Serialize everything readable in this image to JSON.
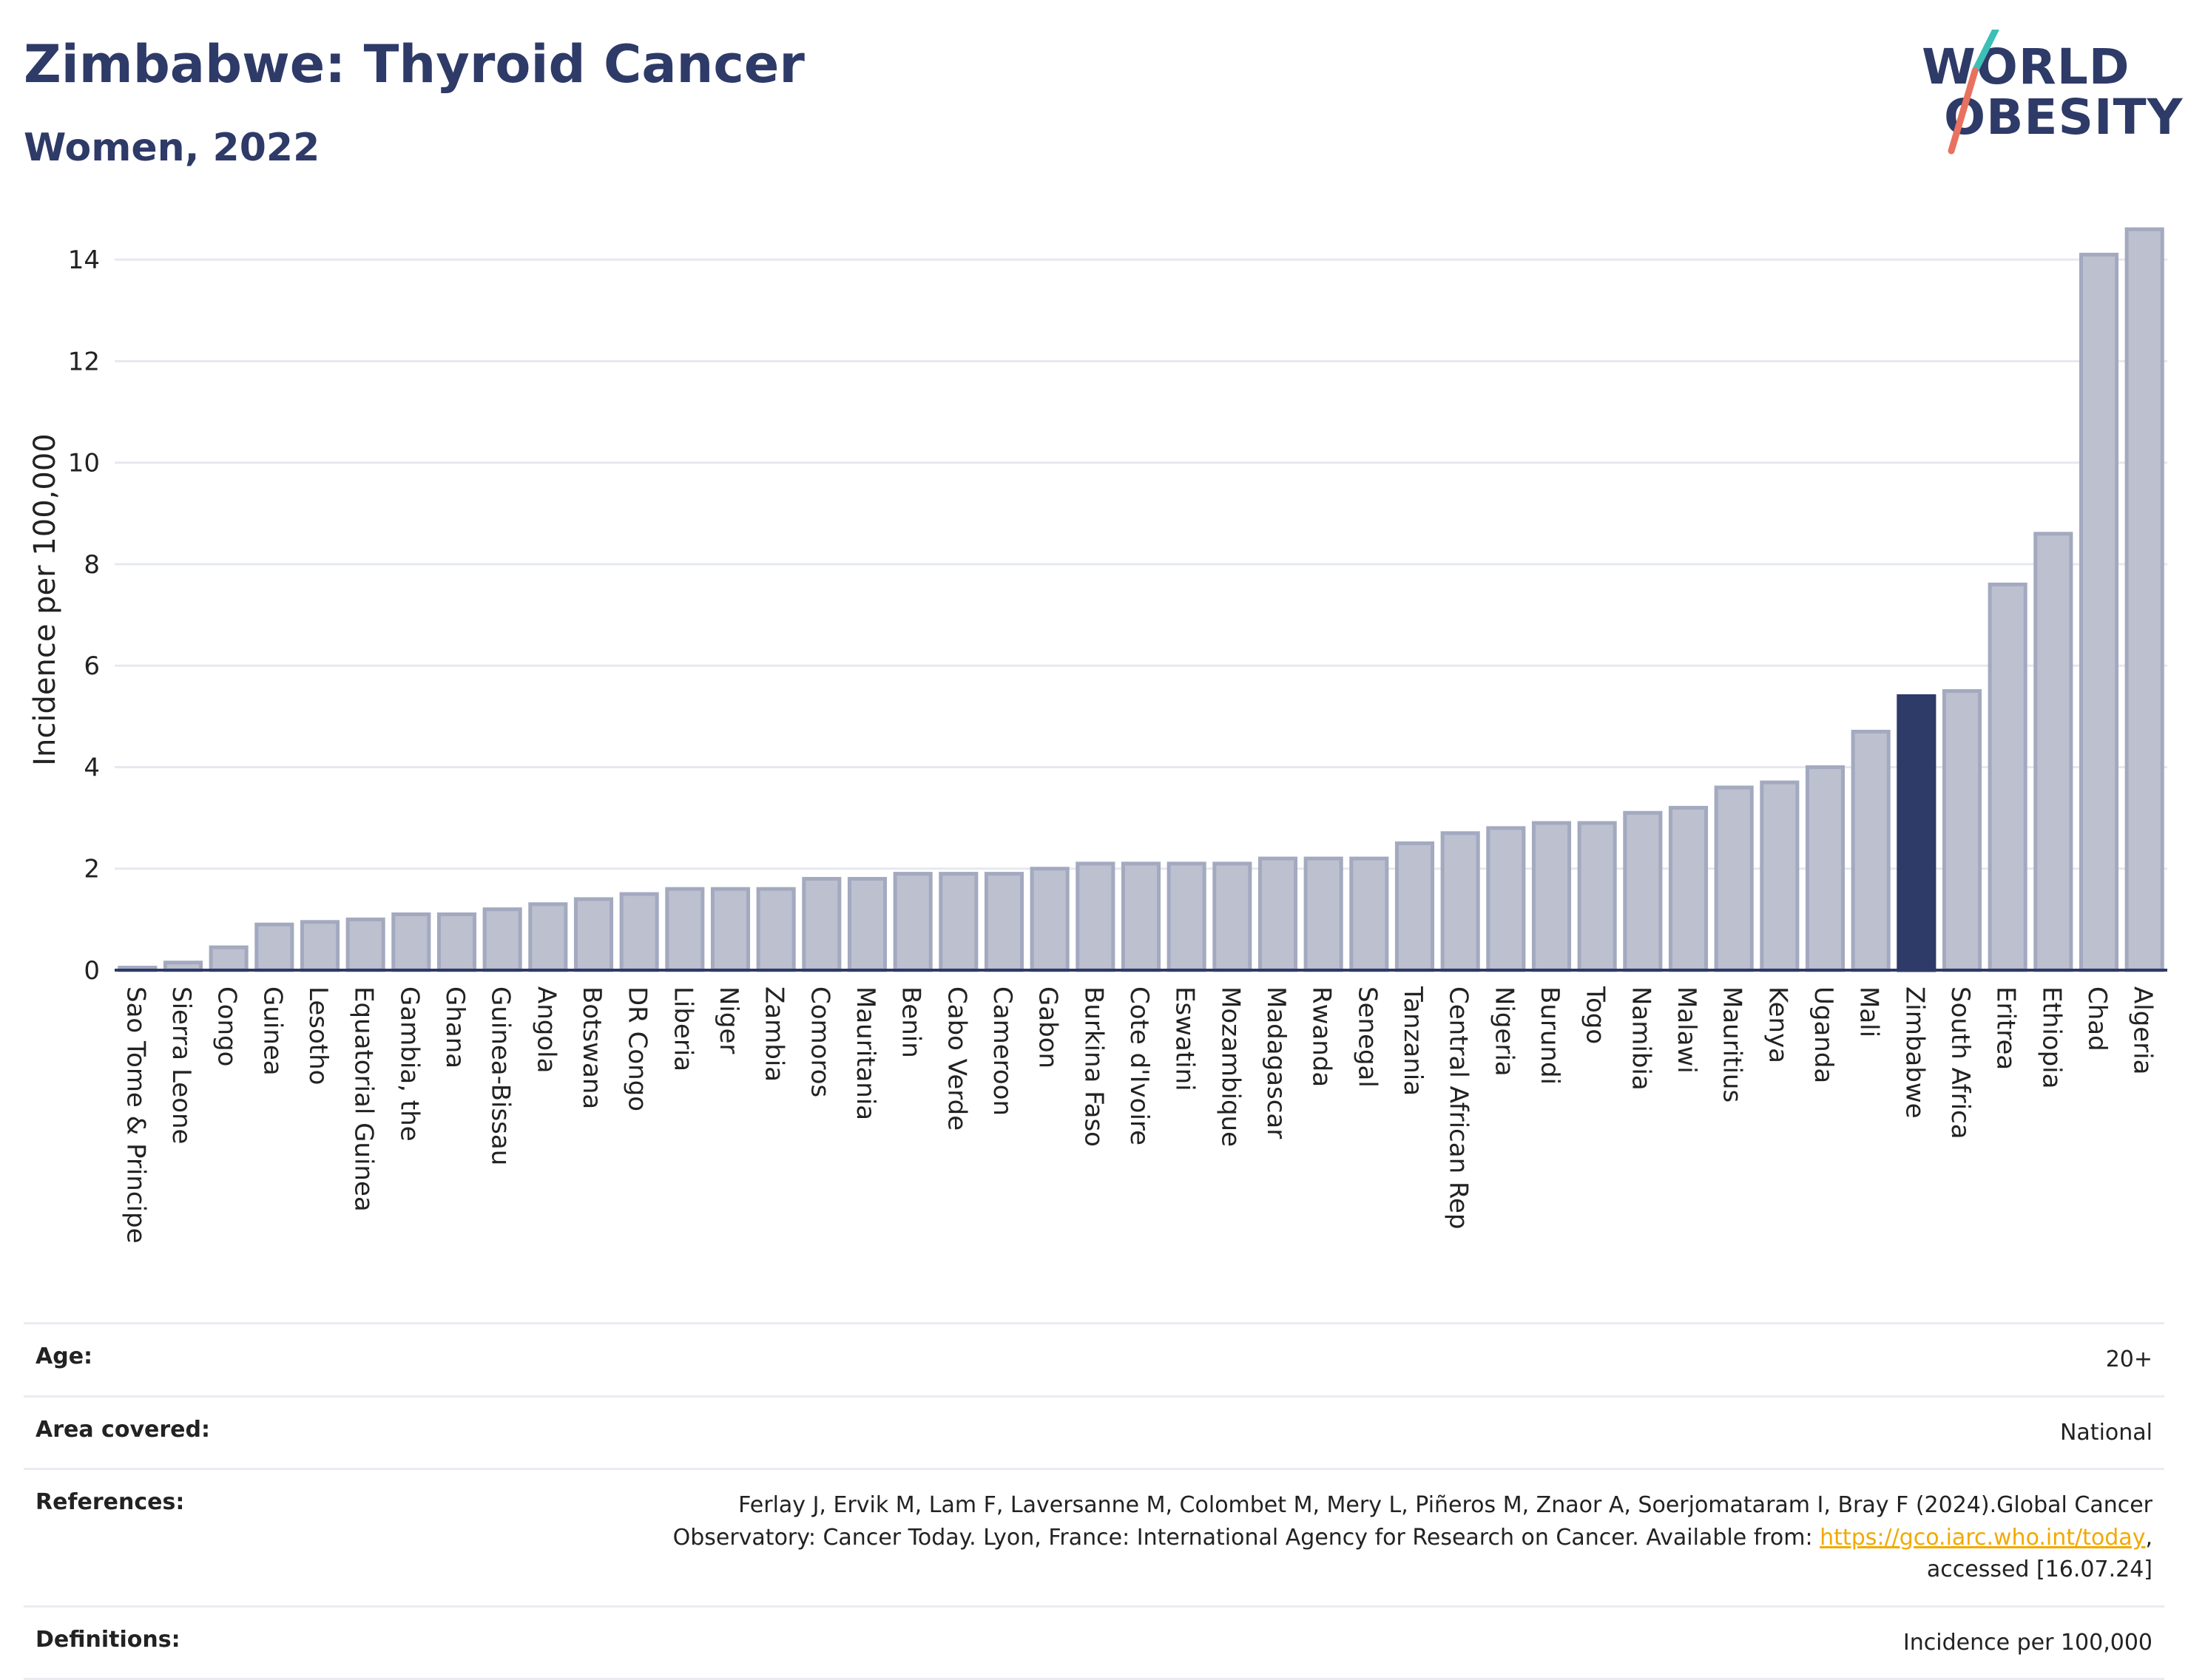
{
  "header": {
    "title": "Zimbabwe: Thyroid Cancer",
    "subtitle": "Women, 2022",
    "logo_line1": "WORLD",
    "logo_line2": "OBESITY"
  },
  "colors": {
    "bar": "#bcc0cf",
    "bar_border": "#a3a9bf",
    "highlight": "#2e3a67",
    "grid": "#e6e8ef",
    "axis": "#2e3a67"
  },
  "chart_data": {
    "type": "bar",
    "ylabel": "Incidence per 100,000",
    "xlabel": "",
    "ylim": [
      0,
      14.6
    ],
    "yticks": [
      0,
      2,
      4,
      6,
      8,
      10,
      12,
      14
    ],
    "grid": true,
    "highlight": "Zimbabwe",
    "categories": [
      "Sao Tome & Principe",
      "Sierra Leone",
      "Congo",
      "Guinea",
      "Lesotho",
      "Equatorial Guinea",
      "Gambia, the",
      "Ghana",
      "Guinea-Bissau",
      "Angola",
      "Botswana",
      "DR Congo",
      "Liberia",
      "Niger",
      "Zambia",
      "Comoros",
      "Mauritania",
      "Benin",
      "Cabo Verde",
      "Cameroon",
      "Gabon",
      "Burkina Faso",
      "Cote d'Ivoire",
      "Eswatini",
      "Mozambique",
      "Madagascar",
      "Rwanda",
      "Senegal",
      "Tanzania",
      "Central African Rep",
      "Nigeria",
      "Burundi",
      "Togo",
      "Namibia",
      "Malawi",
      "Mauritius",
      "Kenya",
      "Uganda",
      "Mali",
      "Zimbabwe",
      "South Africa",
      "Eritrea",
      "Ethiopia",
      "Chad",
      "Algeria"
    ],
    "values": [
      0.05,
      0.15,
      0.45,
      0.9,
      0.95,
      1.0,
      1.1,
      1.1,
      1.2,
      1.3,
      1.4,
      1.5,
      1.6,
      1.6,
      1.6,
      1.8,
      1.8,
      1.9,
      1.9,
      1.9,
      2.0,
      2.1,
      2.1,
      2.1,
      2.1,
      2.2,
      2.2,
      2.2,
      2.5,
      2.7,
      2.8,
      2.9,
      2.9,
      3.1,
      3.2,
      3.6,
      3.7,
      4.0,
      4.7,
      5.4,
      5.5,
      7.6,
      8.6,
      14.1,
      14.6
    ]
  },
  "info": {
    "age_label": "Age:",
    "age_value": "20+",
    "area_label": "Area covered:",
    "area_value": "National",
    "references_label": "References:",
    "references_text1": "Ferlay J, Ervik M, Lam F, Laversanne M, Colombet M, Mery L, Piñeros M, Znaor A, Soerjomataram I, Bray F (2024).Global Cancer",
    "references_text2": "Observatory: Cancer Today. Lyon, France: International Agency for Research on Cancer. Available from: ",
    "references_link": "https://gco.iarc.who.int/today",
    "references_text3": ",",
    "references_text4": "accessed [16.07.24]",
    "definitions_label": "Definitions:",
    "definitions_value": "Incidence per 100,000"
  }
}
